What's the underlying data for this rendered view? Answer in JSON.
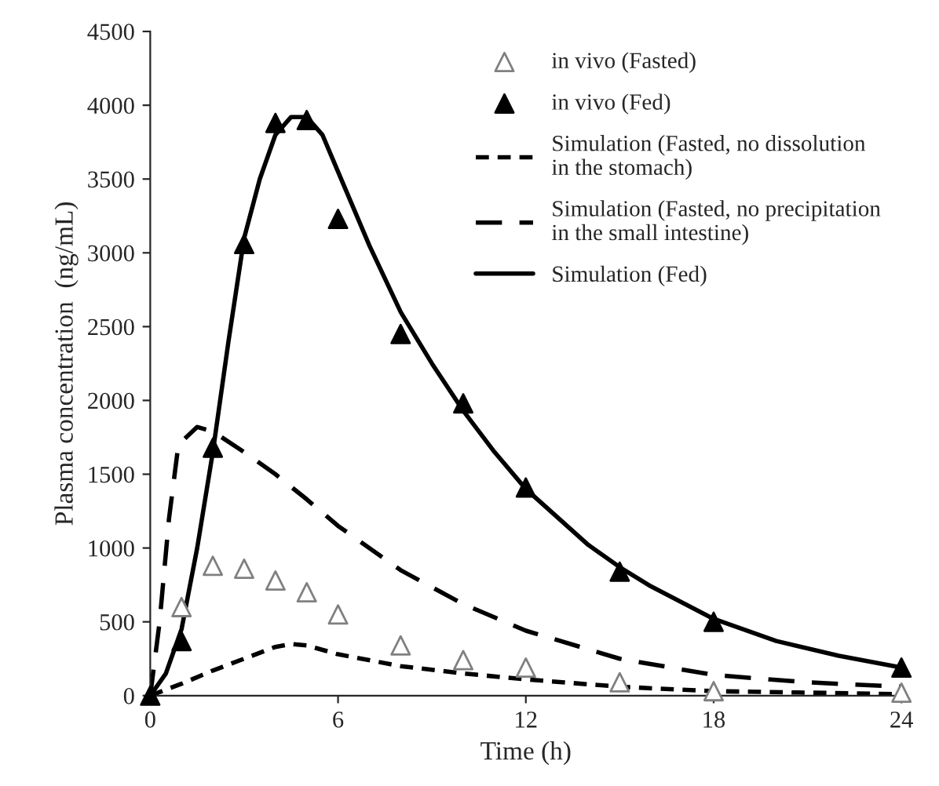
{
  "chart_data": {
    "type": "line",
    "xlabel": "Time (h)",
    "ylabel": "Plasma concentration  (ng/mL)",
    "xlim": [
      0,
      24
    ],
    "xticks": [
      0,
      6,
      12,
      18,
      24
    ],
    "ylim": [
      0,
      4500
    ],
    "yticks": [
      0,
      500,
      1000,
      1500,
      2000,
      2500,
      3000,
      3500,
      4000,
      4500
    ],
    "grid": false,
    "legend": "top right",
    "series": [
      {
        "name": "in vivo (Fasted)",
        "type": "scatter",
        "marker": "triangle",
        "color": "#808080",
        "x": [
          1,
          2,
          3,
          4,
          5,
          6,
          8,
          10,
          12,
          15,
          18,
          24
        ],
        "values": [
          600,
          880,
          860,
          780,
          700,
          550,
          340,
          240,
          190,
          90,
          30,
          20
        ]
      },
      {
        "name": "in vivo (Fed)",
        "type": "scatter",
        "marker": "triangle",
        "color": "#000000",
        "x": [
          0,
          1,
          2,
          3,
          4,
          5,
          6,
          8,
          10,
          12,
          15,
          18,
          24
        ],
        "values": [
          0,
          370,
          1680,
          3060,
          3880,
          3900,
          3230,
          2450,
          1980,
          1410,
          840,
          500,
          190
        ]
      },
      {
        "name": "Simulation (Fasted, no dissolution\nin the stomach)",
        "line_style": "dotted",
        "color": "#000000",
        "x": [
          0,
          1,
          2,
          3,
          4,
          4.5,
          5,
          6,
          8,
          10,
          12,
          15,
          18,
          21,
          24
        ],
        "values": [
          0,
          80,
          170,
          250,
          330,
          350,
          340,
          280,
          200,
          150,
          110,
          60,
          30,
          20,
          10
        ]
      },
      {
        "name": "Simulation (Fasted, no precipitation\nin the small intestine)",
        "line_style": "dashed",
        "color": "#000000",
        "x": [
          0,
          0.3,
          0.6,
          0.9,
          1.5,
          2,
          3,
          4,
          5,
          6,
          8,
          10,
          12,
          15,
          18,
          21,
          24
        ],
        "values": [
          0,
          500,
          1200,
          1700,
          1820,
          1790,
          1650,
          1500,
          1330,
          1150,
          850,
          620,
          440,
          250,
          140,
          90,
          60
        ]
      },
      {
        "name": "Simulation (Fed)",
        "line_style": "solid",
        "color": "#000000",
        "x": [
          0,
          0.5,
          1,
          1.5,
          2,
          2.5,
          3,
          3.5,
          4,
          4.5,
          5,
          5.5,
          6,
          7,
          8,
          9,
          10,
          11,
          12,
          14,
          15,
          16,
          18,
          20,
          22,
          24
        ],
        "values": [
          0,
          150,
          450,
          1000,
          1650,
          2400,
          3100,
          3500,
          3800,
          3920,
          3920,
          3800,
          3550,
          3050,
          2600,
          2250,
          1930,
          1650,
          1400,
          1020,
          870,
          740,
          520,
          370,
          270,
          190
        ]
      }
    ]
  }
}
